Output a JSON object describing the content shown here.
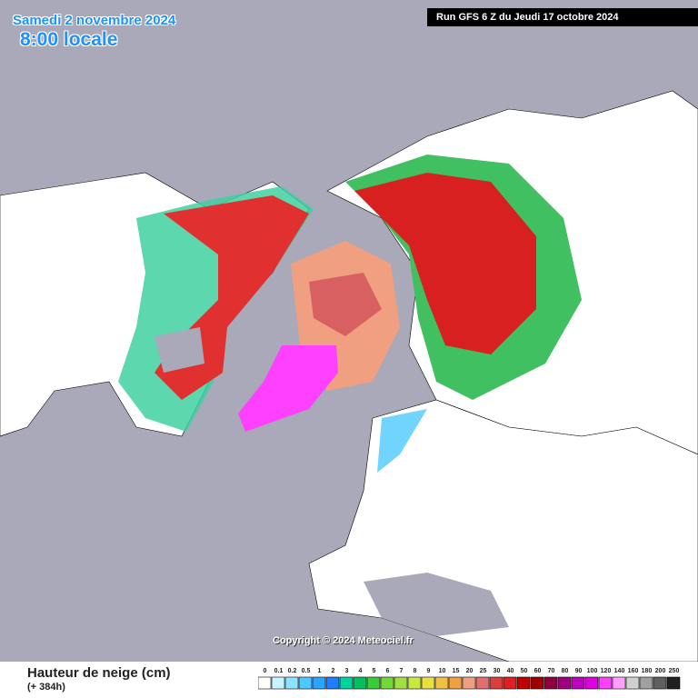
{
  "header": {
    "date": "Samedi 2 novembre 2024",
    "time": "8:00 locale",
    "run": "Run GFS 6 Z du Jeudi 17 octobre 2024"
  },
  "copyright": "Copyright © 2024 Meteociel.fr",
  "legend": {
    "title": "Hauteur de neige (cm)",
    "subtitle": "(+ 384h)",
    "items": [
      {
        "label": "0",
        "color": "#ffffff"
      },
      {
        "label": "0.1",
        "color": "#c8f4ff"
      },
      {
        "label": "0.2",
        "color": "#8ee1ff"
      },
      {
        "label": "0.5",
        "color": "#4ec9ff"
      },
      {
        "label": "1",
        "color": "#2aa4ff"
      },
      {
        "label": "2",
        "color": "#1e7fff"
      },
      {
        "label": "3",
        "color": "#00d2a0"
      },
      {
        "label": "4",
        "color": "#00c060"
      },
      {
        "label": "5",
        "color": "#38cc38"
      },
      {
        "label": "6",
        "color": "#70d838"
      },
      {
        "label": "7",
        "color": "#a0e040"
      },
      {
        "label": "8",
        "color": "#c8e840"
      },
      {
        "label": "9",
        "color": "#e8e040"
      },
      {
        "label": "10",
        "color": "#f0c040"
      },
      {
        "label": "15",
        "color": "#f0a040"
      },
      {
        "label": "20",
        "color": "#f0a080"
      },
      {
        "label": "25",
        "color": "#e07070"
      },
      {
        "label": "30",
        "color": "#d84040"
      },
      {
        "label": "40",
        "color": "#e02020"
      },
      {
        "label": "50",
        "color": "#c00000"
      },
      {
        "label": "60",
        "color": "#a00000"
      },
      {
        "label": "70",
        "color": "#900040"
      },
      {
        "label": "80",
        "color": "#a00080"
      },
      {
        "label": "90",
        "color": "#c000c0"
      },
      {
        "label": "100",
        "color": "#e000e0"
      },
      {
        "label": "120",
        "color": "#ff40ff"
      },
      {
        "label": "140",
        "color": "#ffa0ff"
      },
      {
        "label": "160",
        "color": "#d0d0d0"
      },
      {
        "label": "180",
        "color": "#a0a0a0"
      },
      {
        "label": "200",
        "color": "#606060"
      },
      {
        "label": "250",
        "color": "#202020"
      }
    ]
  }
}
